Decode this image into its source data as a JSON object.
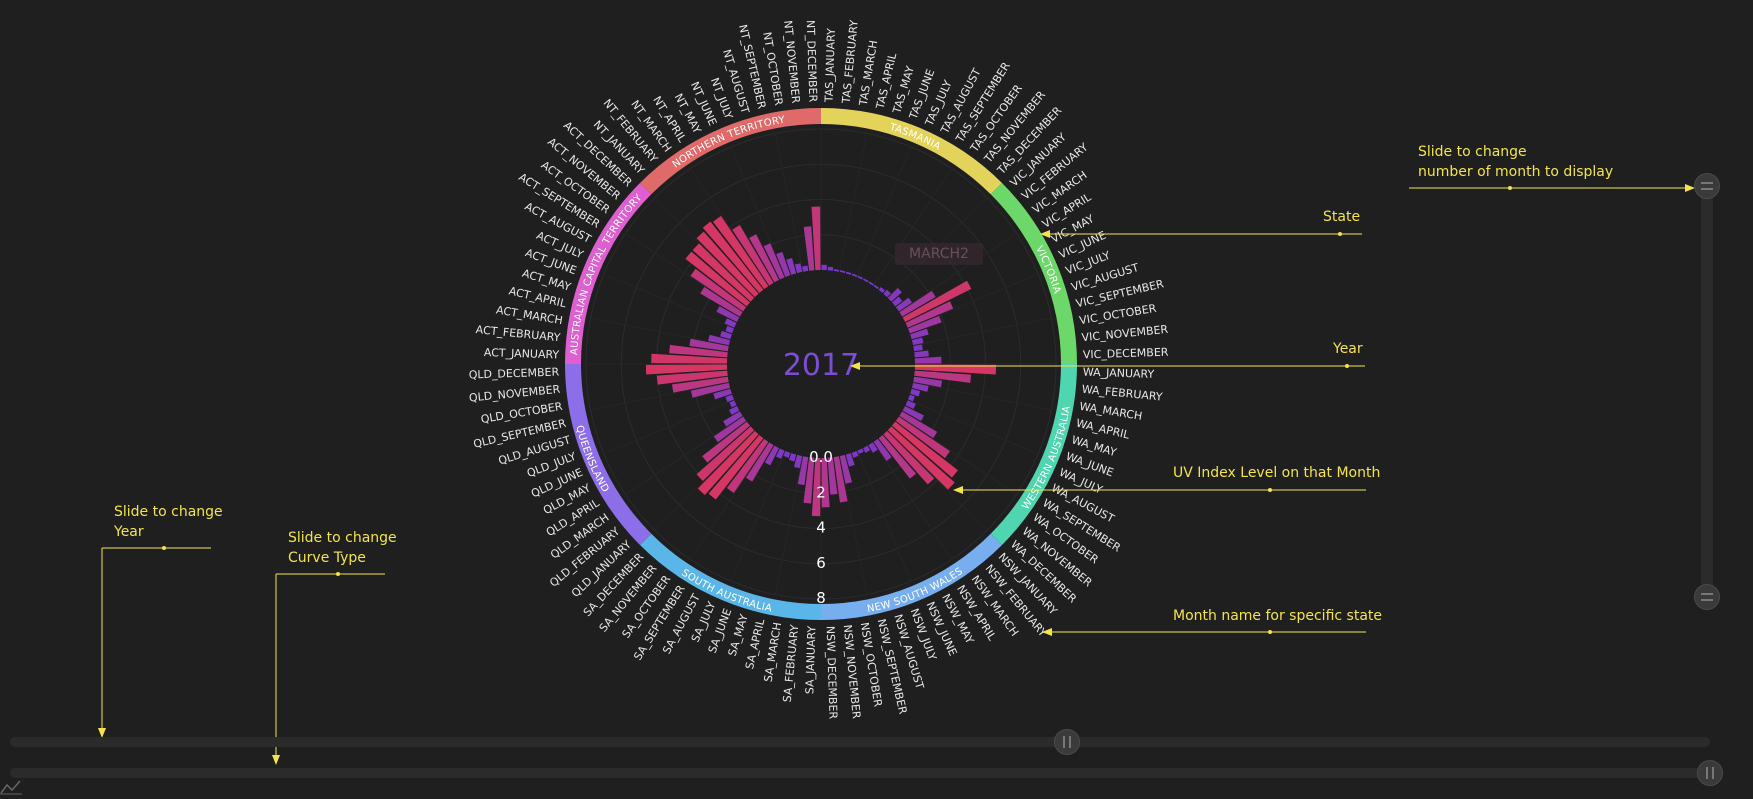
{
  "chart_data": {
    "type": "radial-bar",
    "center_label": "2017",
    "radial_axis_ticks": [
      "0.0",
      "2",
      "4",
      "6",
      "8"
    ],
    "radial_axis_range": [
      0,
      8
    ],
    "hover_label": "MARCH2",
    "states": [
      {
        "name": "TASMANIA",
        "prefix": "TAS",
        "color": "#e3d35a"
      },
      {
        "name": "VICTORIA",
        "prefix": "VIC",
        "color": "#6cd86a"
      },
      {
        "name": "WESTERN AUSTRALIA",
        "prefix": "WA",
        "color": "#4fd6b0"
      },
      {
        "name": "NEW SOUTH WALES",
        "prefix": "NSW",
        "color": "#77aef0"
      },
      {
        "name": "SOUTH AUSTRALIA",
        "prefix": "SA",
        "color": "#5ab6e8"
      },
      {
        "name": "QUEENSLAND",
        "prefix": "QLD",
        "color": "#8c6ee8"
      },
      {
        "name": "AUSTRALIAN CAPITAL TERRITORY",
        "prefix": "ACT",
        "color": "#dd5fd0"
      },
      {
        "name": "NORTHERN TERRITORY",
        "prefix": "NT",
        "color": "#e06a6a"
      }
    ],
    "months": [
      "JANUARY",
      "FEBRUARY",
      "MARCH",
      "APRIL",
      "MAY",
      "JUNE",
      "JULY",
      "AUGUST",
      "SEPTEMBER",
      "OCTOBER",
      "NOVEMBER",
      "DECEMBER"
    ],
    "values": {
      "TAS": [
        0.3,
        0.2,
        0.1,
        0.1,
        0.1,
        0.1,
        0.1,
        0.1,
        0.1,
        0.1,
        0.2,
        0.3
      ],
      "VIC": [
        0.8,
        0.5,
        0.9,
        2.2,
        4.2,
        2.8,
        1.9,
        1.0,
        0.6,
        0.5,
        0.8,
        1.5
      ],
      "WA": [
        4.6,
        3.2,
        1.6,
        0.9,
        0.5,
        0.3,
        0.5,
        1.2,
        2.3,
        3.5,
        4.5,
        4.8
      ],
      "NSW": [
        3.8,
        2.9,
        1.3,
        0.5,
        0.3,
        0.2,
        0.3,
        0.7,
        1.6,
        2.6,
        2.1,
        2.8
      ],
      "SA": [
        3.3,
        2.6,
        1.6,
        0.7,
        0.4,
        0.3,
        0.5,
        1.1,
        2.4,
        3.5,
        4.4,
        4.6
      ],
      "QLD": [
        4.1,
        3.2,
        2.0,
        1.1,
        0.5,
        0.3,
        0.4,
        1.0,
        2.2,
        3.2,
        4.0,
        4.6
      ],
      "ACT": [
        4.3,
        3.3,
        2.2,
        1.2,
        0.6,
        0.4,
        0.6,
        1.3,
        2.6,
        3.6,
        4.4,
        4.4
      ],
      "NT": [
        4.7,
        4.9,
        4.8,
        3.8,
        2.9,
        2.1,
        1.4,
        0.9,
        0.5,
        0.3,
        2.5,
        3.6
      ]
    }
  },
  "annotations": {
    "state": "State",
    "year": "Year",
    "uv_index": "UV Index Level on that Month",
    "month_name": "Month name for specific state",
    "slide_month_line1": "Slide to change",
    "slide_month_line2": "number of month to display",
    "slide_year_line1": "Slide to change",
    "slide_year_line2": "Year",
    "slide_curve_line1": "Slide to change",
    "slide_curve_line2": "Curve Type"
  },
  "colors": {
    "background": "#1f1f1f",
    "annotation": "#f4e44a",
    "bar_high": "#d93a6c",
    "bar_low": "#7a3ad8",
    "center_text": "#7b4fd3",
    "label_text": "#e8e8e8"
  }
}
